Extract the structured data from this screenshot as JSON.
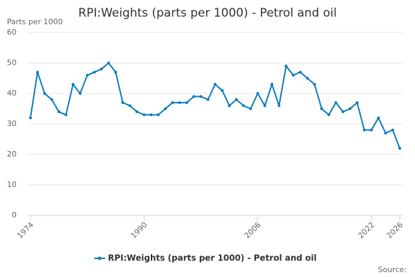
{
  "chart_data": {
    "type": "line",
    "title": "RPI:Weights (parts per 1000) - Petrol and oil",
    "y_label": "Parts per 1000",
    "source": "Source:",
    "x": [
      1974,
      1975,
      1976,
      1977,
      1978,
      1979,
      1980,
      1981,
      1982,
      1983,
      1984,
      1985,
      1986,
      1987,
      1988,
      1989,
      1990,
      1991,
      1992,
      1993,
      1994,
      1995,
      1996,
      1997,
      1998,
      1999,
      2000,
      2001,
      2002,
      2003,
      2004,
      2005,
      2006,
      2007,
      2008,
      2009,
      2010,
      2011,
      2012,
      2013,
      2014,
      2015,
      2016,
      2017,
      2018,
      2019,
      2020,
      2021,
      2022,
      2023,
      2024,
      2025,
      2026
    ],
    "series": [
      {
        "name": "RPI:Weights (parts per 1000) - Petrol and oil",
        "color": "#0b7bbd",
        "values": [
          32,
          47,
          40,
          38,
          34,
          33,
          43,
          40,
          46,
          47,
          48,
          50,
          47,
          37,
          36,
          34,
          33,
          33,
          33,
          35,
          37,
          37,
          37,
          39,
          39,
          38,
          43,
          41,
          36,
          38,
          36,
          35,
          40,
          36,
          43,
          36,
          49,
          46,
          47,
          45,
          43,
          35,
          33,
          37,
          34,
          35,
          37,
          28,
          28,
          32,
          27,
          28,
          22
        ]
      }
    ],
    "xlim": [
      1974,
      2026
    ],
    "xticks": [
      1974,
      1990,
      2006,
      2022,
      2026
    ],
    "ylim": [
      0,
      60
    ],
    "yticks": [
      0,
      10,
      20,
      30,
      40,
      50,
      60
    ],
    "grid": true
  }
}
